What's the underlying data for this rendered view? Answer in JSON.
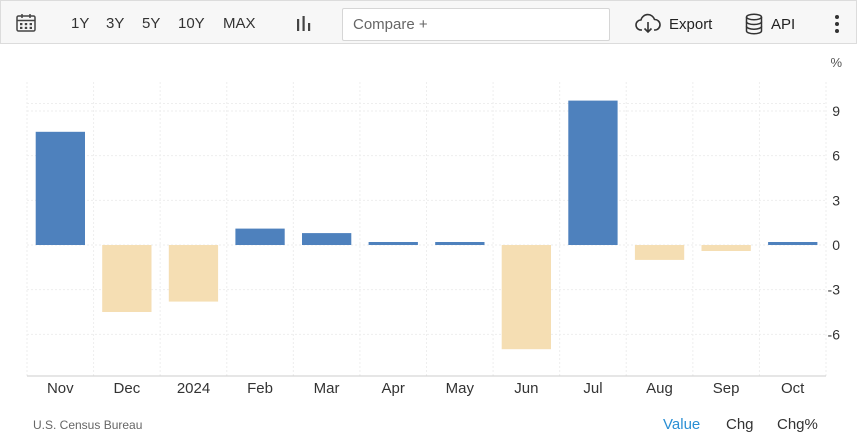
{
  "toolbar": {
    "ranges": [
      "1Y",
      "3Y",
      "5Y",
      "10Y",
      "MAX"
    ],
    "compare_placeholder": "Compare +",
    "export_label": "Export",
    "api_label": "API",
    "icons": [
      "calendar-icon",
      "bar-chart-icon",
      "cloud-download-icon",
      "database-icon",
      "more-vertical-icon"
    ]
  },
  "chart_data": {
    "type": "bar",
    "categories": [
      "Nov",
      "Dec",
      "2024",
      "Feb",
      "Mar",
      "Apr",
      "May",
      "Jun",
      "Jul",
      "Aug",
      "Sep",
      "Oct"
    ],
    "values": [
      7.6,
      -4.5,
      -3.8,
      1.1,
      0.8,
      0.2,
      0.2,
      -7.0,
      9.7,
      -1.0,
      -0.4,
      0.2
    ],
    "y_unit": "%",
    "yticks": [
      9,
      6,
      3,
      0,
      -3,
      -6
    ],
    "ylim": [
      -9,
      9.5
    ],
    "grid": true,
    "colors": {
      "positive": "#4e81bd",
      "negative": "#f5deb3"
    }
  },
  "footer": {
    "source": "U.S. Census Bureau",
    "modes": [
      "Value",
      "Chg",
      "Chg%"
    ],
    "active_mode": "Value",
    "colors": {
      "active": "#2a8fd4",
      "inactive": "#333333"
    }
  }
}
